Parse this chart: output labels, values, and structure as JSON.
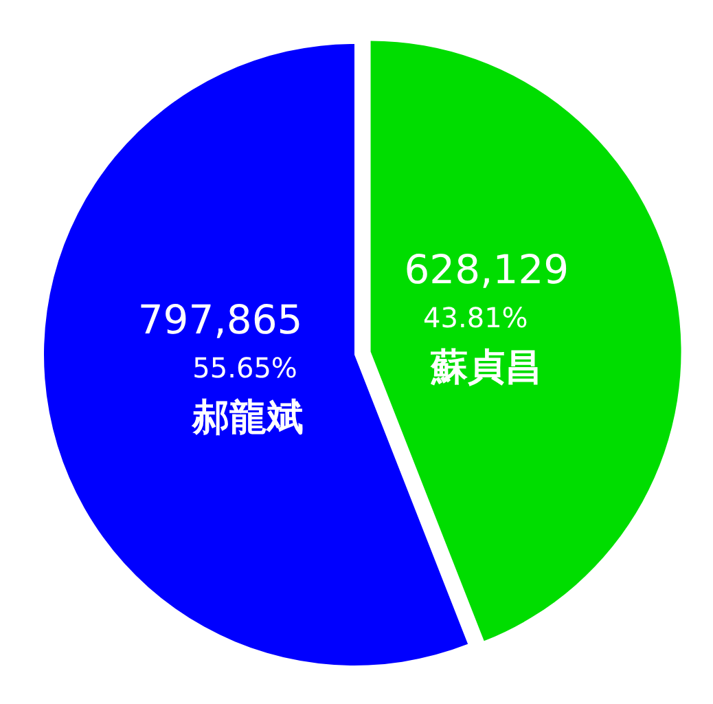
{
  "chart_data": {
    "type": "pie",
    "categories": [
      "蘇貞昌",
      "郝龍斌"
    ],
    "values": [
      628129,
      797865
    ],
    "colors": [
      "#00dd00",
      "#0000ff"
    ],
    "value_labels": [
      "628,129",
      "797,865"
    ],
    "annotations": [
      "43.81%",
      "55.65%"
    ]
  }
}
